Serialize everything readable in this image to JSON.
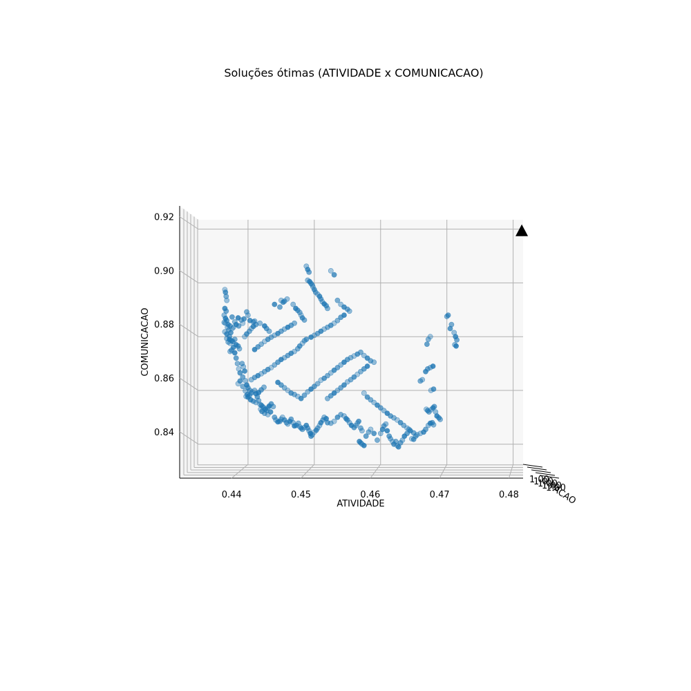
{
  "chart_data": {
    "type": "scatter",
    "projection": "3d",
    "title": "Soluções ótimas (ATIVIDADE x COMUNICACAO)",
    "xlabel": "ATIVIDADE",
    "ylabel": "COMUNICACAO",
    "zlabel": "FACAO",
    "xlim": [
      0.4325,
      0.4815
    ],
    "ylim": [
      0.8325,
      0.9235
    ],
    "x_ticks": [
      "0.44",
      "0.45",
      "0.46",
      "0.47",
      "0.48"
    ],
    "y_ticks": [
      "0.84",
      "0.86",
      "0.88",
      "0.90",
      "0.92"
    ],
    "z_ticks": [
      "1.00",
      "1.00",
      "1.00",
      "1.00",
      "1.00"
    ],
    "grid": true,
    "point_color": "#1f77b4",
    "marker_color": "#000000",
    "marker_icon": "triangle-icon",
    "marker_point": {
      "x": 0.4813,
      "y": 0.9192
    },
    "points": [
      [
        0.4365,
        0.8975
      ],
      [
        0.4366,
        0.8965
      ],
      [
        0.4367,
        0.895
      ],
      [
        0.4368,
        0.8935
      ],
      [
        0.4365,
        0.8905
      ],
      [
        0.4367,
        0.8895
      ],
      [
        0.4364,
        0.888
      ],
      [
        0.4366,
        0.8868
      ],
      [
        0.4368,
        0.886
      ],
      [
        0.4364,
        0.8853
      ],
      [
        0.4366,
        0.885
      ],
      [
        0.437,
        0.8845
      ],
      [
        0.4373,
        0.884
      ],
      [
        0.4365,
        0.8818
      ],
      [
        0.4368,
        0.881
      ],
      [
        0.4372,
        0.88
      ],
      [
        0.4368,
        0.8793
      ],
      [
        0.4372,
        0.879
      ],
      [
        0.4375,
        0.8785
      ],
      [
        0.437,
        0.878
      ],
      [
        0.4373,
        0.8775
      ],
      [
        0.4377,
        0.8782
      ],
      [
        0.438,
        0.879
      ],
      [
        0.4378,
        0.8835
      ],
      [
        0.4382,
        0.8845
      ],
      [
        0.4386,
        0.884
      ],
      [
        0.438,
        0.8855
      ],
      [
        0.4385,
        0.887
      ],
      [
        0.4376,
        0.8873
      ],
      [
        0.439,
        0.8862
      ],
      [
        0.4392,
        0.885
      ],
      [
        0.4394,
        0.8866
      ],
      [
        0.4398,
        0.8892
      ],
      [
        0.44,
        0.888
      ],
      [
        0.4403,
        0.886
      ],
      [
        0.4408,
        0.8855
      ],
      [
        0.441,
        0.8858
      ],
      [
        0.438,
        0.874
      ],
      [
        0.4382,
        0.872
      ],
      [
        0.4384,
        0.87
      ],
      [
        0.4386,
        0.868
      ],
      [
        0.4388,
        0.8665
      ],
      [
        0.4391,
        0.87
      ],
      [
        0.4393,
        0.8688
      ],
      [
        0.4395,
        0.8672
      ],
      [
        0.4392,
        0.865
      ],
      [
        0.4396,
        0.8636
      ],
      [
        0.4398,
        0.862
      ],
      [
        0.44,
        0.861
      ],
      [
        0.4403,
        0.86
      ],
      [
        0.4406,
        0.8595
      ],
      [
        0.4399,
        0.8585
      ],
      [
        0.4402,
        0.858
      ],
      [
        0.4397,
        0.8578
      ],
      [
        0.44,
        0.8575
      ],
      [
        0.4405,
        0.859
      ],
      [
        0.441,
        0.86
      ],
      [
        0.4412,
        0.8588
      ],
      [
        0.4414,
        0.8576
      ],
      [
        0.4416,
        0.8562
      ],
      [
        0.4418,
        0.8548
      ],
      [
        0.442,
        0.8545
      ],
      [
        0.4422,
        0.854
      ],
      [
        0.4424,
        0.8535
      ],
      [
        0.4426,
        0.853
      ],
      [
        0.4428,
        0.8525
      ],
      [
        0.443,
        0.8535
      ],
      [
        0.4432,
        0.8542
      ],
      [
        0.4435,
        0.855
      ],
      [
        0.4438,
        0.854
      ],
      [
        0.4419,
        0.853
      ],
      [
        0.4421,
        0.8522
      ],
      [
        0.4425,
        0.8515
      ],
      [
        0.443,
        0.851
      ],
      [
        0.4434,
        0.852
      ],
      [
        0.444,
        0.85
      ],
      [
        0.4442,
        0.849
      ],
      [
        0.4445,
        0.8483
      ],
      [
        0.4448,
        0.8485
      ],
      [
        0.445,
        0.8493
      ],
      [
        0.4452,
        0.85
      ],
      [
        0.4455,
        0.849
      ],
      [
        0.4458,
        0.848
      ],
      [
        0.446,
        0.8475
      ],
      [
        0.4463,
        0.8485
      ],
      [
        0.4465,
        0.8493
      ],
      [
        0.4468,
        0.848
      ],
      [
        0.447,
        0.8468
      ],
      [
        0.4473,
        0.847
      ],
      [
        0.4476,
        0.8478
      ],
      [
        0.4478,
        0.8465
      ],
      [
        0.448,
        0.846
      ],
      [
        0.4482,
        0.8455
      ],
      [
        0.4485,
        0.8462
      ],
      [
        0.4488,
        0.847
      ],
      [
        0.449,
        0.846
      ],
      [
        0.4492,
        0.845
      ],
      [
        0.4494,
        0.844
      ],
      [
        0.4495,
        0.843
      ],
      [
        0.4497,
        0.8435
      ],
      [
        0.45,
        0.8445
      ],
      [
        0.4503,
        0.8452
      ],
      [
        0.4505,
        0.846
      ],
      [
        0.4508,
        0.847
      ],
      [
        0.451,
        0.848
      ],
      [
        0.4513,
        0.849
      ],
      [
        0.4515,
        0.85
      ],
      [
        0.4518,
        0.8495
      ],
      [
        0.452,
        0.848
      ],
      [
        0.4525,
        0.8478
      ],
      [
        0.453,
        0.8485
      ],
      [
        0.4535,
        0.85
      ],
      [
        0.454,
        0.851
      ],
      [
        0.4545,
        0.8505
      ],
      [
        0.4548,
        0.8495
      ],
      [
        0.455,
        0.849
      ],
      [
        0.4553,
        0.848
      ],
      [
        0.4556,
        0.847
      ],
      [
        0.456,
        0.8462
      ],
      [
        0.4563,
        0.847
      ],
      [
        0.4565,
        0.8478
      ],
      [
        0.4567,
        0.8485
      ],
      [
        0.457,
        0.846
      ],
      [
        0.4572,
        0.845
      ],
      [
        0.4568,
        0.841
      ],
      [
        0.457,
        0.8405
      ],
      [
        0.4572,
        0.84
      ],
      [
        0.4575,
        0.8395
      ],
      [
        0.4578,
        0.843
      ],
      [
        0.4582,
        0.8445
      ],
      [
        0.4585,
        0.8455
      ],
      [
        0.459,
        0.844
      ],
      [
        0.4595,
        0.8415
      ],
      [
        0.46,
        0.844
      ],
      [
        0.4603,
        0.8455
      ],
      [
        0.4605,
        0.8468
      ],
      [
        0.4608,
        0.8475
      ],
      [
        0.461,
        0.845
      ],
      [
        0.4613,
        0.843
      ],
      [
        0.4615,
        0.842
      ],
      [
        0.4618,
        0.841
      ],
      [
        0.462,
        0.84
      ],
      [
        0.4623,
        0.841
      ],
      [
        0.4625,
        0.8395
      ],
      [
        0.4627,
        0.839
      ],
      [
        0.463,
        0.8405
      ],
      [
        0.4633,
        0.8415
      ],
      [
        0.4636,
        0.843
      ],
      [
        0.464,
        0.844
      ],
      [
        0.4643,
        0.8455
      ],
      [
        0.4647,
        0.842
      ],
      [
        0.465,
        0.8418
      ],
      [
        0.4653,
        0.843
      ],
      [
        0.466,
        0.844
      ],
      [
        0.4665,
        0.8445
      ],
      [
        0.4668,
        0.8455
      ],
      [
        0.4672,
        0.847
      ],
      [
        0.4675,
        0.8478
      ],
      [
        0.4678,
        0.848
      ],
      [
        0.468,
        0.8472
      ],
      [
        0.4669,
        0.853
      ],
      [
        0.4671,
        0.8525
      ],
      [
        0.4673,
        0.852
      ],
      [
        0.4676,
        0.8528
      ],
      [
        0.4679,
        0.8535
      ],
      [
        0.4681,
        0.854
      ],
      [
        0.4683,
        0.852
      ],
      [
        0.4685,
        0.8505
      ],
      [
        0.4688,
        0.8498
      ],
      [
        0.469,
        0.8492
      ],
      [
        0.4676,
        0.86
      ],
      [
        0.468,
        0.8605
      ],
      [
        0.466,
        0.8635
      ],
      [
        0.4663,
        0.864
      ],
      [
        0.4668,
        0.867
      ],
      [
        0.4671,
        0.868
      ],
      [
        0.4675,
        0.8685
      ],
      [
        0.4679,
        0.869
      ],
      [
        0.467,
        0.8772
      ],
      [
        0.4672,
        0.879
      ],
      [
        0.4675,
        0.88
      ],
      [
        0.4705,
        0.883
      ],
      [
        0.4707,
        0.8845
      ],
      [
        0.4711,
        0.8815
      ],
      [
        0.4713,
        0.88
      ],
      [
        0.4715,
        0.8788
      ],
      [
        0.4712,
        0.877
      ],
      [
        0.4714,
        0.8765
      ],
      [
        0.4702,
        0.888
      ],
      [
        0.47,
        0.8875
      ],
      [
        0.445,
        0.8935
      ],
      [
        0.4453,
        0.8928
      ],
      [
        0.4455,
        0.8932
      ],
      [
        0.4459,
        0.894
      ],
      [
        0.444,
        0.892
      ],
      [
        0.4448,
        0.891
      ],
      [
        0.4468,
        0.892
      ],
      [
        0.4472,
        0.8905
      ],
      [
        0.4475,
        0.8898
      ],
      [
        0.4478,
        0.889
      ],
      [
        0.448,
        0.888
      ],
      [
        0.4482,
        0.887
      ],
      [
        0.4485,
        0.8862
      ],
      [
        0.4488,
        0.9062
      ],
      [
        0.449,
        0.905
      ],
      [
        0.4492,
        0.904
      ],
      [
        0.449,
        0.901
      ],
      [
        0.4493,
        0.9005
      ],
      [
        0.4495,
        0.8998
      ],
      [
        0.4497,
        0.8992
      ],
      [
        0.4498,
        0.8985
      ],
      [
        0.45,
        0.8975
      ],
      [
        0.4502,
        0.8965
      ],
      [
        0.4505,
        0.8958
      ],
      [
        0.4508,
        0.895
      ],
      [
        0.451,
        0.894
      ],
      [
        0.4512,
        0.893
      ],
      [
        0.4515,
        0.8922
      ],
      [
        0.4518,
        0.8915
      ],
      [
        0.452,
        0.8905
      ],
      [
        0.4525,
        0.9045
      ],
      [
        0.453,
        0.903
      ],
      [
        0.4535,
        0.8935
      ],
      [
        0.454,
        0.892
      ],
      [
        0.4545,
        0.891
      ],
      [
        0.455,
        0.8902
      ],
      [
        0.4553,
        0.8895
      ],
      [
        0.4545,
        0.888
      ],
      [
        0.454,
        0.8872
      ],
      [
        0.4535,
        0.886
      ],
      [
        0.453,
        0.885
      ],
      [
        0.4525,
        0.8842
      ],
      [
        0.452,
        0.8835
      ],
      [
        0.4515,
        0.8828
      ],
      [
        0.451,
        0.882
      ],
      [
        0.4505,
        0.8812
      ],
      [
        0.45,
        0.8805
      ],
      [
        0.4495,
        0.8798
      ],
      [
        0.4488,
        0.879
      ],
      [
        0.4485,
        0.8785
      ],
      [
        0.4482,
        0.8775
      ],
      [
        0.4478,
        0.8765
      ],
      [
        0.4475,
        0.8755
      ],
      [
        0.447,
        0.8745
      ],
      [
        0.4465,
        0.8738
      ],
      [
        0.446,
        0.873
      ],
      [
        0.4455,
        0.8722
      ],
      [
        0.445,
        0.8715
      ],
      [
        0.4445,
        0.8705
      ],
      [
        0.444,
        0.8695
      ],
      [
        0.4435,
        0.8685
      ],
      [
        0.443,
        0.8678
      ],
      [
        0.4425,
        0.867
      ],
      [
        0.442,
        0.8662
      ],
      [
        0.4415,
        0.8655
      ],
      [
        0.441,
        0.8648
      ],
      [
        0.4405,
        0.864
      ],
      [
        0.4445,
        0.863
      ],
      [
        0.445,
        0.862
      ],
      [
        0.4455,
        0.861
      ],
      [
        0.446,
        0.86
      ],
      [
        0.4465,
        0.859
      ],
      [
        0.447,
        0.8585
      ],
      [
        0.4475,
        0.8578
      ],
      [
        0.448,
        0.857
      ],
      [
        0.4485,
        0.8582
      ],
      [
        0.449,
        0.8595
      ],
      [
        0.4495,
        0.8605
      ],
      [
        0.45,
        0.8615
      ],
      [
        0.4505,
        0.8625
      ],
      [
        0.451,
        0.8638
      ],
      [
        0.4515,
        0.8645
      ],
      [
        0.452,
        0.8655
      ],
      [
        0.4525,
        0.8665
      ],
      [
        0.453,
        0.8675
      ],
      [
        0.4535,
        0.8685
      ],
      [
        0.454,
        0.8695
      ],
      [
        0.4545,
        0.8705
      ],
      [
        0.455,
        0.8715
      ],
      [
        0.4555,
        0.8722
      ],
      [
        0.456,
        0.8728
      ],
      [
        0.4565,
        0.8735
      ],
      [
        0.457,
        0.8742
      ],
      [
        0.4575,
        0.873
      ],
      [
        0.458,
        0.872
      ],
      [
        0.4585,
        0.871
      ],
      [
        0.459,
        0.8705
      ],
      [
        0.458,
        0.869
      ],
      [
        0.4575,
        0.868
      ],
      [
        0.457,
        0.867
      ],
      [
        0.4565,
        0.866
      ],
      [
        0.456,
        0.865
      ],
      [
        0.4555,
        0.864
      ],
      [
        0.455,
        0.8632
      ],
      [
        0.4545,
        0.862
      ],
      [
        0.454,
        0.861
      ],
      [
        0.4535,
        0.86
      ],
      [
        0.453,
        0.859
      ],
      [
        0.4525,
        0.858
      ],
      [
        0.452,
        0.857
      ],
      [
        0.4575,
        0.859
      ],
      [
        0.458,
        0.8575
      ],
      [
        0.4585,
        0.8565
      ],
      [
        0.459,
        0.8555
      ],
      [
        0.4595,
        0.8545
      ],
      [
        0.46,
        0.8535
      ],
      [
        0.4605,
        0.8525
      ],
      [
        0.461,
        0.8515
      ],
      [
        0.4615,
        0.8505
      ],
      [
        0.462,
        0.8498
      ],
      [
        0.4625,
        0.849
      ],
      [
        0.463,
        0.848
      ],
      [
        0.4635,
        0.847
      ],
      [
        0.464,
        0.846
      ],
      [
        0.4645,
        0.845
      ],
      [
        0.465,
        0.8442
      ],
      [
        0.4655,
        0.8435
      ],
      [
        0.441,
        0.8752
      ],
      [
        0.4415,
        0.8762
      ],
      [
        0.442,
        0.8772
      ],
      [
        0.4425,
        0.8782
      ],
      [
        0.443,
        0.879
      ],
      [
        0.4435,
        0.8798
      ],
      [
        0.444,
        0.8805
      ],
      [
        0.4445,
        0.8812
      ],
      [
        0.445,
        0.882
      ],
      [
        0.4455,
        0.8828
      ],
      [
        0.446,
        0.8835
      ],
      [
        0.4465,
        0.8842
      ],
      [
        0.447,
        0.885
      ],
      [
        0.4395,
        0.88
      ],
      [
        0.4398,
        0.881
      ],
      [
        0.4402,
        0.882
      ],
      [
        0.4405,
        0.883
      ],
      [
        0.4408,
        0.8838
      ],
      [
        0.4412,
        0.8845
      ],
      [
        0.4418,
        0.885
      ],
      [
        0.4425,
        0.884
      ],
      [
        0.4428,
        0.883
      ],
      [
        0.4432,
        0.882
      ],
      [
        0.4385,
        0.8625
      ],
      [
        0.4388,
        0.8635
      ],
      [
        0.4392,
        0.8615
      ],
      [
        0.4396,
        0.8598
      ],
      [
        0.4404,
        0.8565
      ],
      [
        0.4408,
        0.856
      ],
      [
        0.4412,
        0.8555
      ],
      [
        0.4416,
        0.8592
      ],
      [
        0.442,
        0.8602
      ],
      [
        0.4424,
        0.8612
      ],
      [
        0.4376,
        0.883
      ],
      [
        0.4374,
        0.8815
      ],
      [
        0.4371,
        0.8825
      ],
      [
        0.4369,
        0.8835
      ],
      [
        0.4378,
        0.876
      ],
      [
        0.4375,
        0.875
      ],
      [
        0.4373,
        0.8745
      ],
      [
        0.4382,
        0.877
      ],
      [
        0.4385,
        0.8765
      ],
      [
        0.4387,
        0.8755
      ]
    ]
  }
}
